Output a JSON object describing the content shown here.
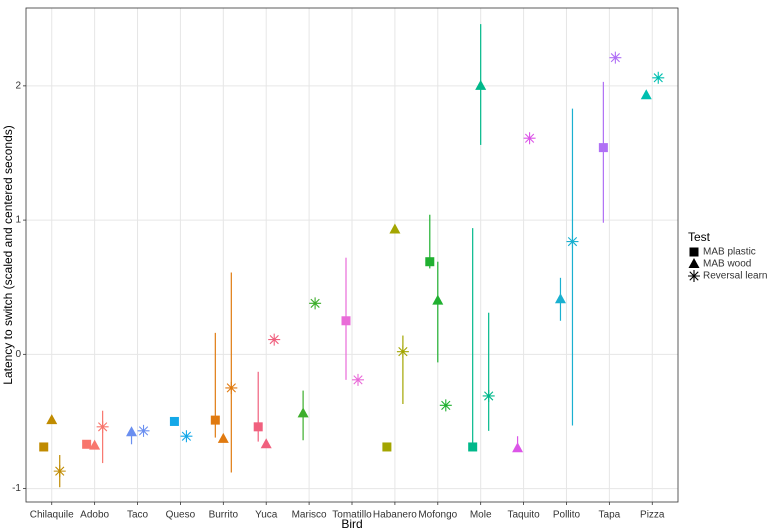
{
  "chart_data": {
    "type": "dodged-point-errorbar",
    "x_label": "Bird",
    "y_label": "Latency to switch (scaled and centered seconds)",
    "legend_title": "Test",
    "legend_position": "right",
    "grid": true,
    "categories": [
      "Chilaquile",
      "Adobo",
      "Taco",
      "Queso",
      "Burrito",
      "Yuca",
      "Marisco",
      "Tomatillo",
      "Habanero",
      "Mofongo",
      "Mole",
      "Taquito",
      "Pollito",
      "Tapa",
      "Pizza"
    ],
    "colors": [
      "#C08B00",
      "#F8766D",
      "#6A8FF0",
      "#14A8E8",
      "#E07A10",
      "#F0607E",
      "#3DAE2B",
      "#E96BD8",
      "#A3A500",
      "#20B030",
      "#00B88A",
      "#DC55E8",
      "#1AB0D0",
      "#B070F5",
      "#00BFB0"
    ],
    "ylim": [
      -1.1,
      2.58
    ],
    "yticks": [
      -1,
      0,
      1,
      2
    ],
    "series": [
      {
        "name": "MAB plastic",
        "shape": "square",
        "values": [
          -0.69,
          -0.67,
          null,
          -0.5,
          -0.49,
          -0.54,
          null,
          0.25,
          -0.69,
          0.69,
          -0.69,
          null,
          null,
          1.54,
          null
        ],
        "lower": [
          null,
          null,
          null,
          null,
          -0.62,
          -0.65,
          null,
          -0.19,
          null,
          0.64,
          -0.69,
          null,
          null,
          0.98,
          null
        ],
        "upper": [
          null,
          null,
          null,
          null,
          0.16,
          -0.13,
          null,
          0.72,
          null,
          1.04,
          0.94,
          null,
          null,
          2.03,
          null
        ]
      },
      {
        "name": "MAB wood",
        "shape": "triangle",
        "values": [
          -0.49,
          -0.68,
          -0.58,
          null,
          -0.63,
          -0.67,
          -0.44,
          null,
          0.93,
          0.4,
          2.0,
          -0.7,
          0.41,
          null,
          1.93
        ],
        "lower": [
          null,
          null,
          -0.67,
          null,
          null,
          null,
          -0.64,
          null,
          null,
          -0.06,
          1.56,
          -0.7,
          0.25,
          null,
          null
        ],
        "upper": [
          null,
          null,
          -0.55,
          null,
          null,
          null,
          -0.27,
          null,
          null,
          0.69,
          2.46,
          -0.61,
          0.57,
          null,
          null
        ]
      },
      {
        "name": "Reversal learning",
        "shape": "asterisk",
        "values": [
          -0.87,
          -0.54,
          -0.57,
          -0.61,
          -0.25,
          0.11,
          0.38,
          -0.19,
          0.02,
          -0.38,
          -0.31,
          1.61,
          0.84,
          2.21,
          2.06
        ],
        "lower": [
          -0.99,
          -0.81,
          null,
          null,
          -0.88,
          null,
          null,
          null,
          -0.37,
          null,
          -0.57,
          null,
          -0.53,
          null,
          null
        ],
        "upper": [
          -0.75,
          -0.42,
          null,
          null,
          0.61,
          null,
          null,
          null,
          0.14,
          null,
          0.31,
          null,
          1.83,
          null,
          null
        ]
      }
    ]
  }
}
